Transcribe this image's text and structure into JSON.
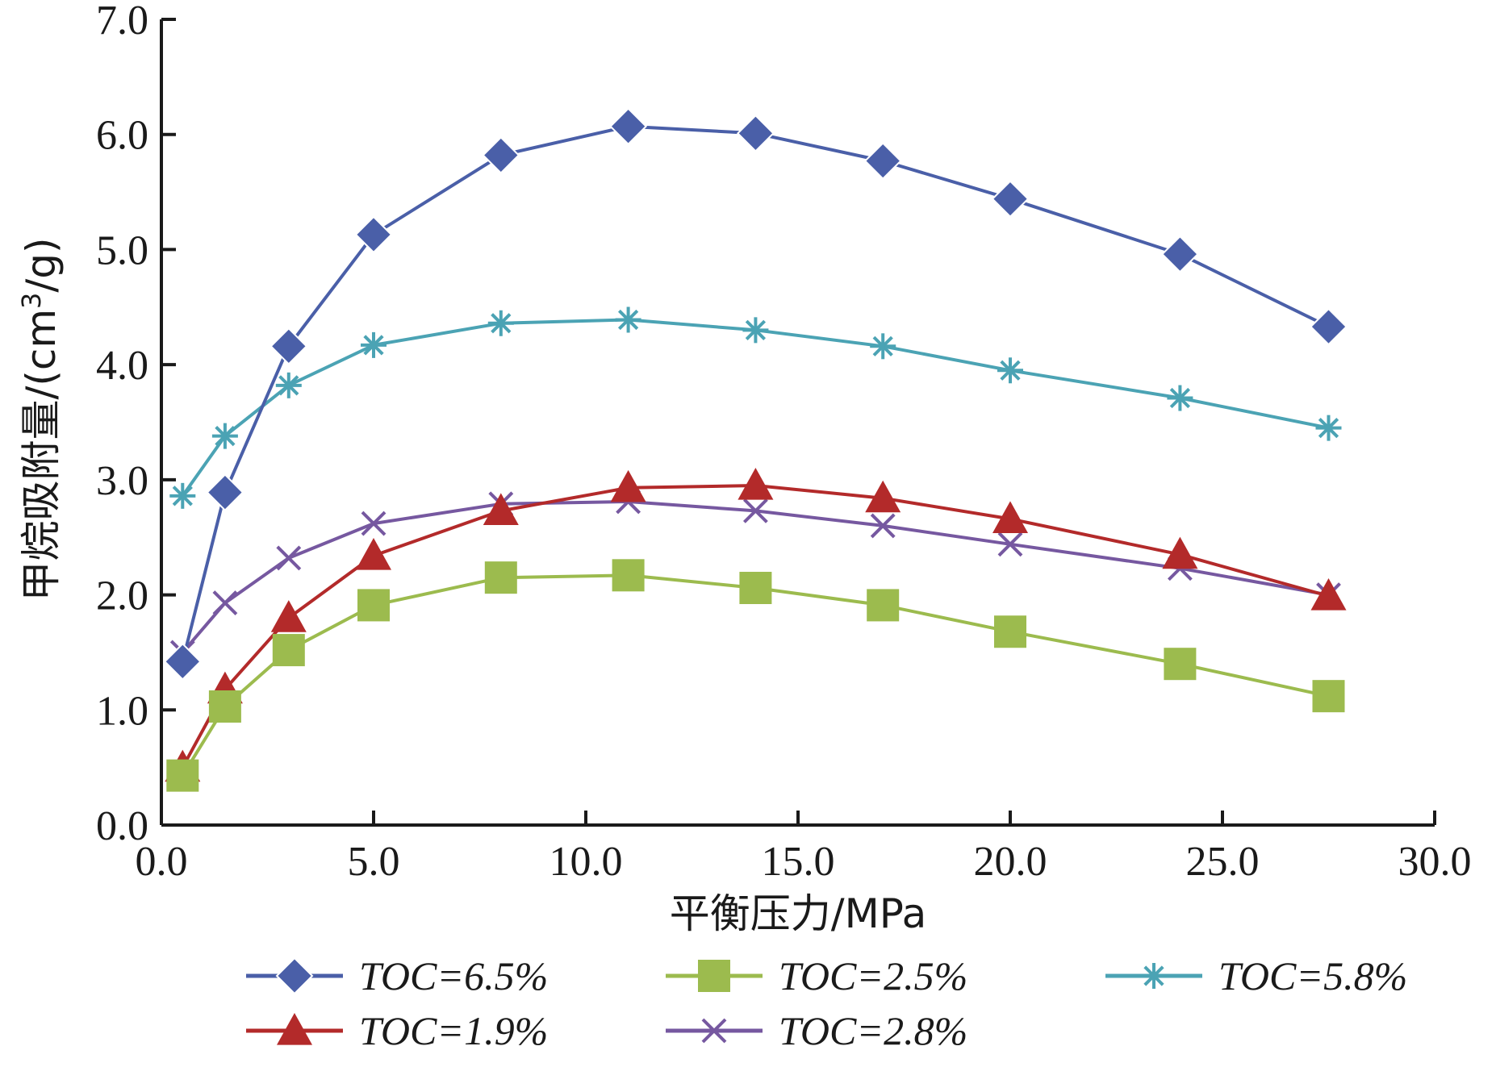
{
  "chart_data": {
    "type": "line",
    "xlabel": "平衡压力/MPa",
    "ylabel_prefix": "甲烷吸附量/(cm",
    "ylabel_sup": "3",
    "ylabel_suffix": "/g)",
    "xlim": [
      0,
      30
    ],
    "ylim": [
      0,
      7
    ],
    "x_ticks": [
      0,
      5,
      10,
      15,
      20,
      25,
      30
    ],
    "x_tick_labels": [
      "0.0",
      "5.0",
      "10.0",
      "15.0",
      "20.0",
      "25.0",
      "30.0"
    ],
    "y_ticks": [
      0,
      1,
      2,
      3,
      4,
      5,
      6,
      7
    ],
    "y_tick_labels": [
      "0.0",
      "1.0",
      "2.0",
      "3.0",
      "4.0",
      "5.0",
      "6.0",
      "7.0"
    ],
    "grid": false,
    "legend_position": "bottom",
    "x": [
      0.5,
      1.5,
      3.0,
      5.0,
      8.0,
      11.0,
      14.0,
      17.0,
      20.0,
      24.0,
      27.5
    ],
    "series": [
      {
        "name": "TOC=6.5%",
        "marker": "diamond",
        "color": "#4a5fa8",
        "values": [
          1.42,
          2.89,
          4.16,
          5.13,
          5.82,
          6.07,
          6.01,
          5.77,
          5.44,
          4.96,
          4.33
        ]
      },
      {
        "name": "TOC=2.5%",
        "marker": "square",
        "color": "#9cbb4e",
        "values": [
          0.43,
          1.03,
          1.52,
          1.91,
          2.15,
          2.17,
          2.06,
          1.91,
          1.68,
          1.4,
          1.12
        ]
      },
      {
        "name": "TOC=5.8%",
        "marker": "asterisk",
        "color": "#4ba3b4",
        "values": [
          2.86,
          3.38,
          3.82,
          4.17,
          4.36,
          4.39,
          4.3,
          4.16,
          3.95,
          3.71,
          3.45
        ]
      },
      {
        "name": "TOC=1.9%",
        "marker": "triangle",
        "color": "#b32a2a",
        "values": [
          0.5,
          1.18,
          1.8,
          2.34,
          2.73,
          2.93,
          2.95,
          2.84,
          2.66,
          2.35,
          1.99
        ]
      },
      {
        "name": "TOC=2.8%",
        "marker": "x",
        "color": "#7658a0",
        "values": [
          1.5,
          1.93,
          2.32,
          2.62,
          2.79,
          2.81,
          2.73,
          2.6,
          2.44,
          2.23,
          2.0
        ]
      }
    ]
  }
}
